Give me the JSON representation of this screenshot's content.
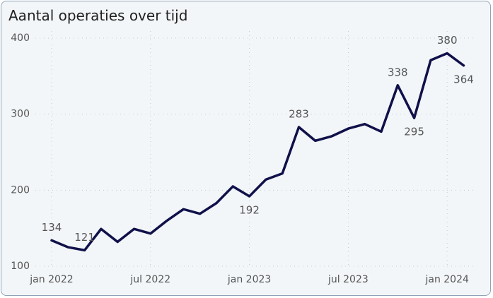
{
  "chart_data": {
    "type": "line",
    "title": "Aantal operaties over tijd",
    "categories": [
      "jan 2022",
      null,
      null,
      null,
      null,
      null,
      "jul 2022",
      null,
      null,
      null,
      null,
      null,
      "jan 2023",
      null,
      null,
      null,
      null,
      null,
      "jul 2023",
      null,
      null,
      null,
      null,
      null,
      "jan 2024",
      null
    ],
    "series": [
      {
        "name": "Aantal operaties",
        "color": "#10104a",
        "values": [
          134,
          125,
          121,
          149,
          132,
          149,
          143,
          160,
          175,
          169,
          183,
          205,
          192,
          214,
          222,
          283,
          265,
          271,
          281,
          287,
          277,
          338,
          295,
          371,
          380,
          364
        ],
        "value_labels": [
          "134",
          null,
          "121",
          null,
          null,
          null,
          null,
          null,
          null,
          null,
          null,
          null,
          "192",
          null,
          null,
          "283",
          null,
          null,
          null,
          null,
          null,
          "338",
          "295",
          null,
          "380",
          "364"
        ]
      }
    ],
    "ylim": [
      100,
      400
    ],
    "yticks": [
      100,
      200,
      300,
      400
    ],
    "grid": true
  }
}
